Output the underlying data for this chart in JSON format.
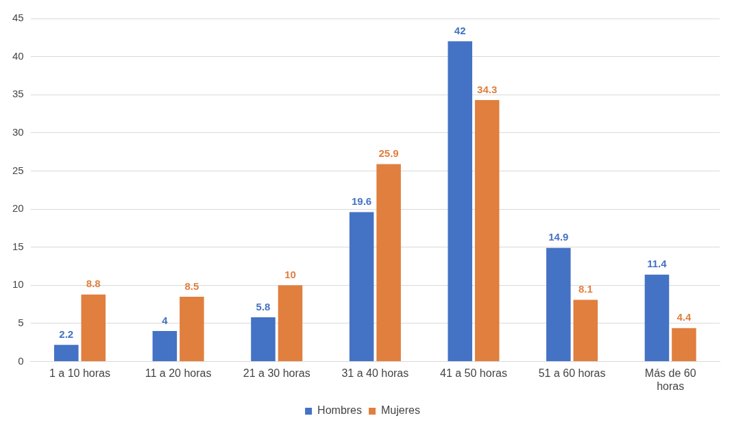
{
  "chart_data": {
    "type": "bar",
    "categories": [
      "1 a 10 horas",
      "11 a 20 horas",
      "21 a 30 horas",
      "31 a 40 horas",
      "41 a 50 horas",
      "51 a 60 horas",
      "Más de 60 horas"
    ],
    "series": [
      {
        "name": "Hombres",
        "color": "#4472c4",
        "values": [
          2.2,
          4,
          5.8,
          19.6,
          42,
          14.9,
          11.4
        ]
      },
      {
        "name": "Mujeres",
        "color": "#e07f3e",
        "values": [
          8.8,
          8.5,
          10,
          25.9,
          34.3,
          8.1,
          4.4
        ]
      }
    ],
    "ylim": [
      0,
      45
    ],
    "yticks": [
      0,
      5,
      10,
      15,
      20,
      25,
      30,
      35,
      40,
      45
    ],
    "grid": "y",
    "legend": "bottom",
    "data_labels": true
  }
}
